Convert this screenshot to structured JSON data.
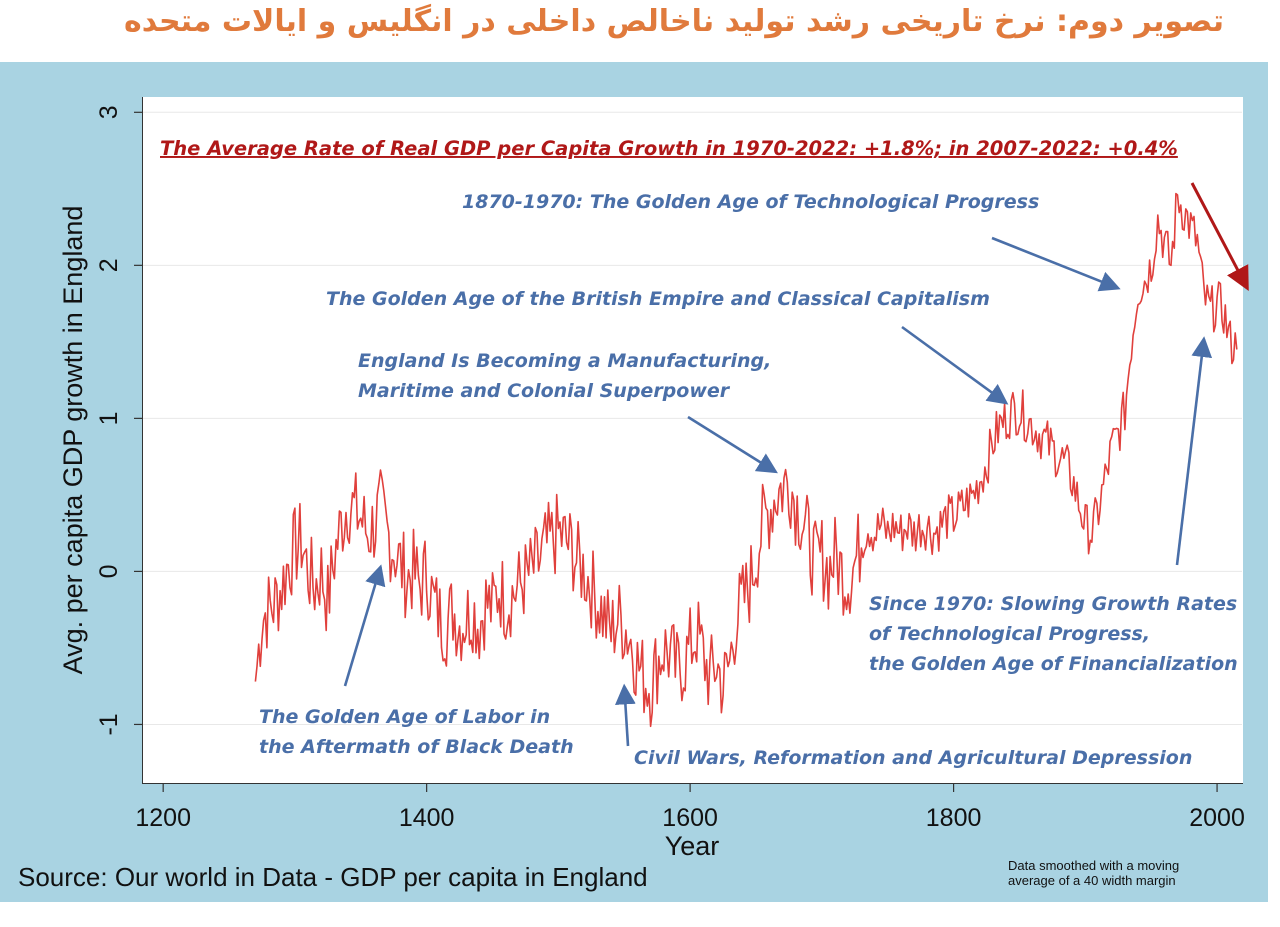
{
  "header": {
    "title": "تصویر دوم: نرخ تاریخی رشد تولید ناخالص داخلی در انگلیس و ایالات متحده"
  },
  "footer": {
    "source": "Source: Our world in Data - GDP per capita in England",
    "smoothing_note_line1": "Data smoothed with a moving",
    "smoothing_note_line2": "average of a 40 width margin"
  },
  "colors": {
    "panel_bg": "#a9d3e2",
    "series_line": "#e0403c",
    "annotation_blue": "#4a6fa8",
    "annotation_red": "#b01818",
    "title_orange": "#e07a3c"
  },
  "chart_data": {
    "type": "line",
    "title": "The Average Rate of Real GDP per Capita Growth in 1970-2022: +1.8%; in 2007-2022: +0.4%",
    "xlabel": "Year",
    "ylabel": "Avg. per capita GDP growth in England",
    "xlim": [
      1190,
      2025
    ],
    "ylim": [
      -1.35,
      3.1
    ],
    "x_ticks": [
      1200,
      1400,
      1600,
      1800,
      2000
    ],
    "y_ticks": [
      -1,
      0,
      1,
      2,
      3
    ],
    "grid": "horizontal",
    "series": [
      {
        "points": [
          [
            1270,
            -0.72
          ],
          [
            1275,
            -0.3
          ],
          [
            1280,
            -0.25
          ],
          [
            1285,
            -0.2
          ],
          [
            1290,
            -0.1
          ],
          [
            1295,
            0.05
          ],
          [
            1300,
            0.15
          ],
          [
            1305,
            0.2
          ],
          [
            1310,
            0.0
          ],
          [
            1315,
            -0.1
          ],
          [
            1320,
            0.0
          ],
          [
            1325,
            -0.2
          ],
          [
            1330,
            0.1
          ],
          [
            1335,
            0.3
          ],
          [
            1340,
            0.45
          ],
          [
            1345,
            0.4
          ],
          [
            1350,
            0.35
          ],
          [
            1355,
            0.25
          ],
          [
            1360,
            0.3
          ],
          [
            1365,
            0.4
          ],
          [
            1370,
            0.25
          ],
          [
            1375,
            0.15
          ],
          [
            1380,
            0.05
          ],
          [
            1385,
            -0.05
          ],
          [
            1390,
            0.0
          ],
          [
            1395,
            -0.1
          ],
          [
            1400,
            0.0
          ],
          [
            1405,
            -0.2
          ],
          [
            1410,
            -0.3
          ],
          [
            1415,
            -0.35
          ],
          [
            1420,
            -0.25
          ],
          [
            1425,
            -0.35
          ],
          [
            1430,
            -0.3
          ],
          [
            1435,
            -0.25
          ],
          [
            1440,
            -0.35
          ],
          [
            1445,
            -0.2
          ],
          [
            1450,
            -0.25
          ],
          [
            1455,
            -0.1
          ],
          [
            1460,
            -0.2
          ],
          [
            1465,
            -0.15
          ],
          [
            1470,
            -0.1
          ],
          [
            1475,
            -0.05
          ],
          [
            1480,
            0.0
          ],
          [
            1485,
            0.05
          ],
          [
            1490,
            0.15
          ],
          [
            1495,
            0.2
          ],
          [
            1500,
            0.25
          ],
          [
            1505,
            0.2
          ],
          [
            1510,
            0.15
          ],
          [
            1515,
            0.05
          ],
          [
            1520,
            0.0
          ],
          [
            1525,
            -0.1
          ],
          [
            1530,
            -0.2
          ],
          [
            1535,
            -0.3
          ],
          [
            1540,
            -0.4
          ],
          [
            1545,
            -0.3
          ],
          [
            1550,
            -0.35
          ],
          [
            1555,
            -0.45
          ],
          [
            1560,
            -0.6
          ],
          [
            1565,
            -0.7
          ],
          [
            1570,
            -0.75
          ],
          [
            1575,
            -0.6
          ],
          [
            1580,
            -0.5
          ],
          [
            1585,
            -0.55
          ],
          [
            1590,
            -0.65
          ],
          [
            1595,
            -0.6
          ],
          [
            1600,
            -0.5
          ],
          [
            1605,
            -0.4
          ],
          [
            1610,
            -0.55
          ],
          [
            1615,
            -0.7
          ],
          [
            1620,
            -0.6
          ],
          [
            1625,
            -0.75
          ],
          [
            1630,
            -0.6
          ],
          [
            1635,
            -0.3
          ],
          [
            1640,
            -0.2
          ],
          [
            1645,
            -0.1
          ],
          [
            1650,
            0.1
          ],
          [
            1655,
            0.3
          ],
          [
            1660,
            0.4
          ],
          [
            1665,
            0.5
          ],
          [
            1670,
            0.55
          ],
          [
            1675,
            0.6
          ],
          [
            1680,
            0.45
          ],
          [
            1685,
            0.35
          ],
          [
            1690,
            0.2
          ],
          [
            1695,
            0.05
          ],
          [
            1700,
            0.1
          ],
          [
            1705,
            0.0
          ],
          [
            1710,
            0.1
          ],
          [
            1715,
            0.0
          ],
          [
            1720,
            -0.05
          ],
          [
            1725,
            0.05
          ],
          [
            1730,
            0.2
          ],
          [
            1735,
            0.3
          ],
          [
            1740,
            0.25
          ],
          [
            1745,
            0.3
          ],
          [
            1750,
            0.25
          ],
          [
            1755,
            0.3
          ],
          [
            1760,
            0.25
          ],
          [
            1765,
            0.3
          ],
          [
            1770,
            0.25
          ],
          [
            1775,
            0.3
          ],
          [
            1780,
            0.3
          ],
          [
            1785,
            0.25
          ],
          [
            1790,
            0.3
          ],
          [
            1795,
            0.35
          ],
          [
            1800,
            0.35
          ],
          [
            1805,
            0.4
          ],
          [
            1810,
            0.45
          ],
          [
            1815,
            0.5
          ],
          [
            1820,
            0.6
          ],
          [
            1825,
            0.7
          ],
          [
            1830,
            0.85
          ],
          [
            1835,
            0.95
          ],
          [
            1840,
            1.0
          ],
          [
            1845,
            1.05
          ],
          [
            1850,
            1.05
          ],
          [
            1855,
            1.0
          ],
          [
            1860,
            0.95
          ],
          [
            1865,
            0.9
          ],
          [
            1870,
            0.85
          ],
          [
            1875,
            0.8
          ],
          [
            1880,
            0.75
          ],
          [
            1885,
            0.7
          ],
          [
            1890,
            0.6
          ],
          [
            1895,
            0.45
          ],
          [
            1900,
            0.3
          ],
          [
            1905,
            0.25
          ],
          [
            1910,
            0.4
          ],
          [
            1915,
            0.6
          ],
          [
            1920,
            0.8
          ],
          [
            1925,
            0.9
          ],
          [
            1930,
            1.05
          ],
          [
            1935,
            1.5
          ],
          [
            1940,
            1.85
          ],
          [
            1945,
            1.9
          ],
          [
            1950,
            2.0
          ],
          [
            1955,
            2.3
          ],
          [
            1960,
            2.15
          ],
          [
            1965,
            2.0
          ],
          [
            1970,
            2.45
          ],
          [
            1975,
            2.35
          ],
          [
            1980,
            2.25
          ],
          [
            1985,
            2.15
          ],
          [
            1990,
            1.8
          ],
          [
            1995,
            1.7
          ],
          [
            2000,
            1.75
          ],
          [
            2005,
            1.7
          ],
          [
            2010,
            1.5
          ],
          [
            2015,
            1.45
          ]
        ]
      }
    ],
    "annotations": [
      {
        "id": "golden-age-tech",
        "lines": [
          "1870-1970: The Golden Age of Technological Progress"
        ],
        "arrow_to": [
          1925,
          1.85
        ]
      },
      {
        "id": "british-empire",
        "lines": [
          "The Golden Age of the British Empire and Classical Capitalism"
        ],
        "arrow_to": [
          1840,
          1.1
        ]
      },
      {
        "id": "manufacturing",
        "lines": [
          "England Is Becoming a Manufacturing,",
          "Maritime and Colonial Superpower"
        ],
        "arrow_to": [
          1665,
          0.65
        ]
      },
      {
        "id": "labor",
        "lines": [
          "The Golden Age of Labor in",
          "the Aftermath of Black Death"
        ],
        "arrow_to": [
          1365,
          0.03
        ]
      },
      {
        "id": "civil-wars",
        "lines": [
          "Civil Wars, Reformation and Agricultural Depression"
        ],
        "arrow_to": [
          1550,
          -0.75
        ]
      },
      {
        "id": "since-1970",
        "lines": [
          "Since 1970: Slowing Growth Rates",
          "of Technological Progress,",
          "the Golden Age of Financialization"
        ],
        "arrow_to": [
          1990,
          1.52
        ]
      },
      {
        "id": "decline",
        "lines": [],
        "arrow_to": [
          2023,
          1.85
        ],
        "color": "#b01818"
      }
    ]
  }
}
